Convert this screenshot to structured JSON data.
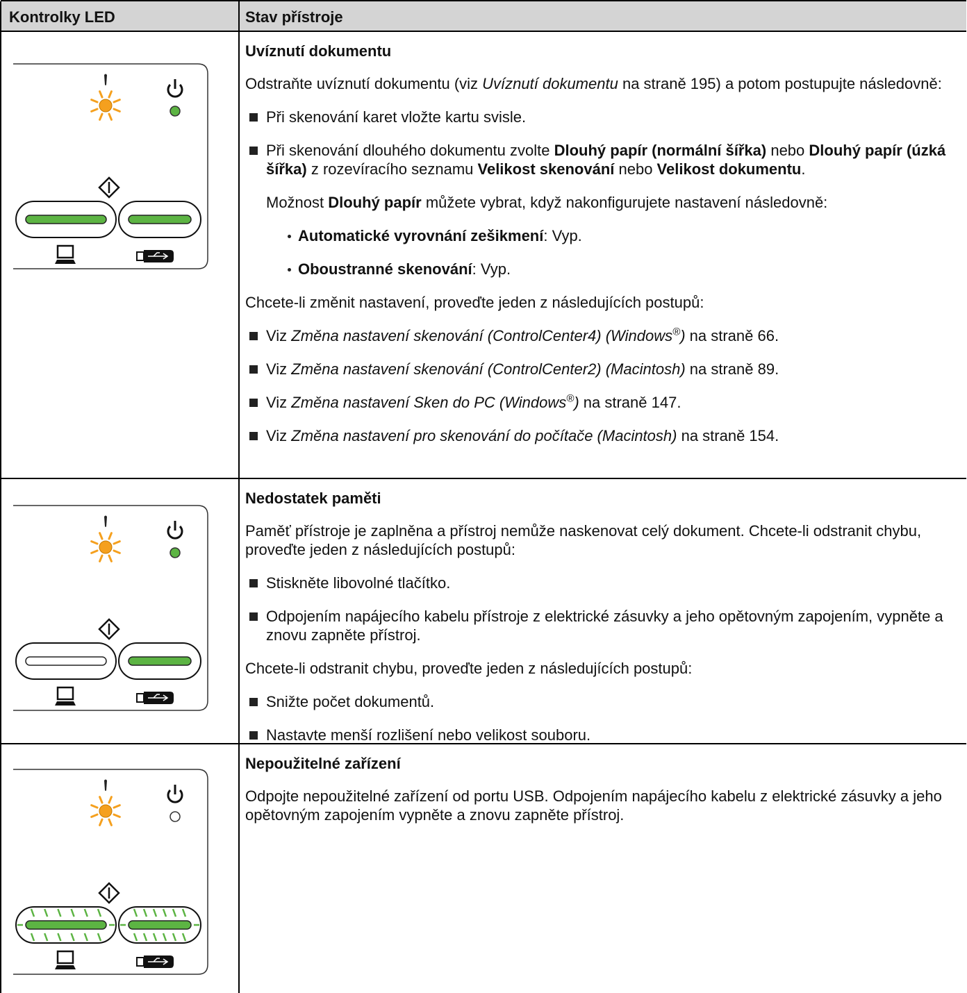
{
  "table": {
    "headers": [
      "Kontrolky LED",
      "Stav přístroje"
    ],
    "rows": [
      {
        "title": "Uvíznutí dokumentu",
        "content": [
          [
            "Odstraňte uvíznutí dokumentu (viz ",
            "Uvíznutí dokumentu",
            " na straně 195) a potom postupujte následovně:"
          ],
          [
            "Při skenování karet vložte kartu svisle."
          ],
          [
            "Při skenování dlouhého dokumentu zvolte ",
            "Dlouhý papír (normální šířka)",
            " nebo ",
            "Dlouhý papír (úzká šířka)",
            " z rozevíracího seznamu ",
            "Velikost skenování",
            " nebo ",
            "Velikost dokumentu",
            "."
          ],
          [
            "Možnost ",
            "Dlouhý papír",
            " můžete vybrat, když nakonfigurujete nastavení následovně:"
          ],
          [
            "Automatické vyrovnání zešikmení",
            ": Vyp."
          ],
          [
            "Oboustranné skenování",
            ": Vyp."
          ],
          [
            "Chcete-li změnit nastavení, proveďte jeden z následujících postupů:"
          ],
          [
            "Viz ",
            "Změna nastavení skenování (ControlCenter4) (Windows",
            "®",
            ")",
            " na straně 66."
          ],
          [
            "Viz ",
            "Změna nastavení skenování (ControlCenter2) (Macintosh)",
            " na straně 89."
          ],
          [
            "Viz ",
            "Změna nastavení Sken do PC (Windows",
            "®",
            ")",
            " na straně 147."
          ],
          [
            "Viz ",
            "Změna nastavení pro skenování do počítače (Macintosh)",
            " na straně 154."
          ]
        ]
      },
      {
        "title": "Nedostatek paměti",
        "content": [
          [
            "Paměť přístroje je zaplněna a přístroj nemůže naskenovat celý dokument. Chcete-li odstranit chybu, proveďte jeden z následujících postupů:"
          ],
          [
            "Stiskněte libovolné tlačítko."
          ],
          [
            "Odpojením napájecího kabelu přístroje z elektrické zásuvky a jeho opětovným zapojením, vypněte a znovu zapněte přístroj."
          ],
          [
            "Chcete-li odstranit chybu, proveďte jeden z následujících postupů:"
          ],
          [
            "Snižte počet dokumentů."
          ],
          [
            "Nastavte menší rozlišení nebo velikost souboru."
          ]
        ]
      },
      {
        "title": "Nepoužitelné zařízení",
        "content": [
          [
            "Odpojte nepoužitelné zařízení od portu USB. Odpojením napájecího kabelu z elektrické zásuvky a jeho opětovným zapojením vypněte a znovu zapněte přístroj."
          ]
        ]
      }
    ]
  }
}
